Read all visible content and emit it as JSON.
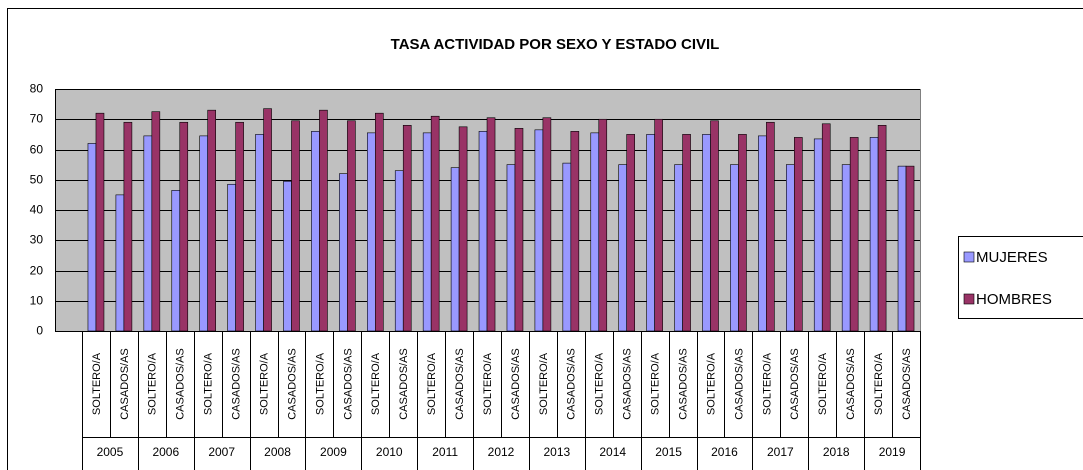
{
  "chart_data": {
    "type": "bar",
    "title": "TASA ACTIVIDAD POR  SEXO Y ESTADO CIVIL",
    "category_groups": [
      "2005",
      "2006",
      "2007",
      "2008",
      "2009",
      "2010",
      "2011",
      "2012",
      "2013",
      "2014",
      "2015",
      "2016",
      "2017",
      "2018",
      "2019"
    ],
    "categories": [
      "SOLTERO/A",
      "CASADOS/AS",
      "SOLTERO/A",
      "CASADOS/AS",
      "SOLTERO/A",
      "CASADOS/AS",
      "SOLTERO/A",
      "CASADOS/AS",
      "SOLTERO/A",
      "CASADOS/AS",
      "SOLTERO/A",
      "CASADOS/AS",
      "SOLTERO/A",
      "CASADOS/AS",
      "SOLTERO/A",
      "CASADOS/AS",
      "SOLTERO/A",
      "CASADOS/AS",
      "SOLTERO/A",
      "CASADOS/AS",
      "SOLTERO/A",
      "CASADOS/AS",
      "SOLTERO/A",
      "CASADOS/AS",
      "SOLTERO/A",
      "CASADOS/AS",
      "SOLTERO/A",
      "CASADOS/AS",
      "SOLTERO/A",
      "CASADOS/AS"
    ],
    "series": [
      {
        "name": "MUJERES",
        "color": "#9999ff",
        "values": [
          62,
          45,
          64.5,
          46.5,
          64.5,
          48.5,
          65,
          49.5,
          66,
          52,
          65.5,
          53,
          65.5,
          54,
          66,
          55,
          66.5,
          55.5,
          65.5,
          55,
          65,
          55,
          65,
          55,
          64.5,
          55,
          63.5,
          55,
          64,
          54.5
        ]
      },
      {
        "name": "HOMBRES",
        "color": "#993366",
        "values": [
          72,
          69,
          72.5,
          69,
          73,
          69,
          73.5,
          69.5,
          73,
          69.5,
          72,
          68,
          71,
          67.5,
          70.5,
          67,
          70.5,
          66,
          70,
          65,
          70,
          65,
          69.5,
          65,
          69,
          64,
          68.5,
          64,
          68,
          54.5
        ]
      }
    ],
    "ylim": [
      0,
      80
    ],
    "yticks": [
      0,
      10,
      20,
      30,
      40,
      50,
      60,
      70,
      80
    ],
    "grid": true,
    "legend": "right"
  }
}
